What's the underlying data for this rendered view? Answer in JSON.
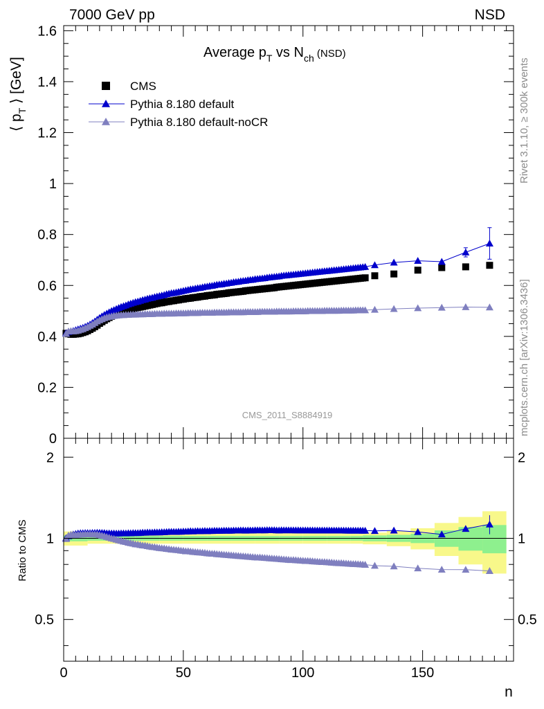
{
  "header": {
    "left": "7000 GeV pp",
    "right": "NSD"
  },
  "side_text": {
    "rivet": "Rivet 3.1.10, ≥ 300k events",
    "mcplots": "mcplots.cern.ch [arXiv:1306.3436]"
  },
  "colors": {
    "cms": "#000000",
    "default": "#0000cc",
    "nocr": "#7f7fbf",
    "band_inner": "#8ef08e",
    "band_outer": "#f8f88a",
    "watermark": "#999999",
    "side_text": "#8c8c8c"
  },
  "chart_data": [
    {
      "type": "scatter",
      "title_parts": {
        "main": "Average p",
        "sub1": "T",
        "mid": " vs N",
        "sub2": "ch",
        "suffix": " (NSD)"
      },
      "watermark": "CMS_2011_S8884919",
      "ylabel_parts": {
        "open": "⟨ p",
        "sub": "T",
        "close": " ⟩ [GeV]"
      },
      "xlim": [
        0,
        188
      ],
      "ylim": [
        0,
        1.62
      ],
      "yticks": [
        0,
        0.2,
        0.4,
        0.6,
        0.8,
        1,
        1.2,
        1.4,
        1.6
      ],
      "ytick_labels": [
        "0",
        "0.2",
        "0.4",
        "0.6",
        "0.8",
        "1",
        "1.2",
        "1.4",
        "1.6"
      ],
      "legend_position": "top-left",
      "series": [
        {
          "name": "CMS",
          "marker": "square",
          "x": [
            1,
            2,
            3,
            4,
            5,
            6,
            7,
            8,
            9,
            10,
            11,
            12,
            13,
            14,
            15,
            16,
            17,
            18,
            19,
            20,
            21,
            22,
            23,
            24,
            25,
            26,
            27,
            28,
            29,
            30,
            31,
            32,
            33,
            34,
            35,
            36,
            37,
            38,
            39,
            40,
            41,
            42,
            43,
            44,
            45,
            46,
            47,
            48,
            49,
            50,
            51,
            52,
            53,
            54,
            55,
            56,
            57,
            58,
            59,
            60,
            61,
            62,
            63,
            64,
            65,
            66,
            67,
            68,
            69,
            70,
            71,
            72,
            73,
            74,
            75,
            76,
            77,
            78,
            79,
            80,
            81,
            82,
            83,
            84,
            85,
            86,
            87,
            88,
            89,
            90,
            91,
            92,
            93,
            94,
            95,
            96,
            97,
            98,
            99,
            100,
            101,
            102,
            103,
            104,
            105,
            106,
            107,
            108,
            109,
            110,
            111,
            112,
            113,
            114,
            115,
            116,
            117,
            118,
            119,
            120,
            121,
            122,
            123,
            124,
            125,
            126,
            130,
            138,
            148,
            158,
            168,
            178
          ],
          "y": [
            0.412,
            0.41,
            0.408,
            0.408,
            0.409,
            0.41,
            0.412,
            0.415,
            0.418,
            0.422,
            0.427,
            0.432,
            0.438,
            0.444,
            0.451,
            0.457,
            0.463,
            0.469,
            0.474,
            0.479,
            0.483,
            0.487,
            0.491,
            0.494,
            0.497,
            0.5,
            0.503,
            0.506,
            0.508,
            0.511,
            0.513,
            0.515,
            0.517,
            0.519,
            0.521,
            0.523,
            0.525,
            0.527,
            0.529,
            0.531,
            0.532,
            0.534,
            0.536,
            0.537,
            0.539,
            0.54,
            0.542,
            0.543,
            0.545,
            0.546,
            0.548,
            0.549,
            0.55,
            0.552,
            0.553,
            0.554,
            0.556,
            0.557,
            0.558,
            0.56,
            0.561,
            0.562,
            0.563,
            0.565,
            0.566,
            0.567,
            0.568,
            0.569,
            0.571,
            0.572,
            0.573,
            0.574,
            0.575,
            0.576,
            0.577,
            0.579,
            0.58,
            0.581,
            0.582,
            0.583,
            0.584,
            0.585,
            0.586,
            0.587,
            0.588,
            0.589,
            0.59,
            0.591,
            0.593,
            0.594,
            0.595,
            0.596,
            0.597,
            0.598,
            0.599,
            0.6,
            0.601,
            0.602,
            0.603,
            0.604,
            0.605,
            0.606,
            0.607,
            0.608,
            0.609,
            0.61,
            0.611,
            0.612,
            0.613,
            0.614,
            0.615,
            0.616,
            0.617,
            0.618,
            0.619,
            0.62,
            0.621,
            0.622,
            0.623,
            0.624,
            0.625,
            0.626,
            0.627,
            0.628,
            0.629,
            0.63,
            0.638,
            0.645,
            0.66,
            0.67,
            0.673,
            0.679
          ]
        },
        {
          "name": "Pythia 8.180 default",
          "marker": "triangle",
          "x": [
            1,
            2,
            3,
            4,
            5,
            6,
            7,
            8,
            9,
            10,
            11,
            12,
            13,
            14,
            15,
            16,
            17,
            18,
            19,
            20,
            21,
            22,
            23,
            24,
            25,
            26,
            27,
            28,
            29,
            30,
            31,
            32,
            33,
            34,
            35,
            36,
            37,
            38,
            39,
            40,
            41,
            42,
            43,
            44,
            45,
            46,
            47,
            48,
            49,
            50,
            51,
            52,
            53,
            54,
            55,
            56,
            57,
            58,
            59,
            60,
            61,
            62,
            63,
            64,
            65,
            66,
            67,
            68,
            69,
            70,
            71,
            72,
            73,
            74,
            75,
            76,
            77,
            78,
            79,
            80,
            81,
            82,
            83,
            84,
            85,
            86,
            87,
            88,
            89,
            90,
            91,
            92,
            93,
            94,
            95,
            96,
            97,
            98,
            99,
            100,
            101,
            102,
            103,
            104,
            105,
            106,
            107,
            108,
            109,
            110,
            111,
            112,
            113,
            114,
            115,
            116,
            117,
            118,
            119,
            120,
            121,
            122,
            123,
            124,
            125,
            126,
            130,
            138,
            148,
            158,
            168,
            178
          ],
          "y": [
            0.413,
            0.418,
            0.42,
            0.422,
            0.425,
            0.428,
            0.431,
            0.434,
            0.438,
            0.442,
            0.447,
            0.453,
            0.459,
            0.466,
            0.473,
            0.479,
            0.485,
            0.49,
            0.495,
            0.5,
            0.504,
            0.508,
            0.512,
            0.516,
            0.519,
            0.522,
            0.526,
            0.529,
            0.532,
            0.535,
            0.537,
            0.54,
            0.543,
            0.545,
            0.548,
            0.55,
            0.552,
            0.555,
            0.557,
            0.559,
            0.561,
            0.563,
            0.566,
            0.568,
            0.57,
            0.571,
            0.573,
            0.575,
            0.577,
            0.579,
            0.581,
            0.583,
            0.585,
            0.586,
            0.588,
            0.59,
            0.591,
            0.593,
            0.595,
            0.596,
            0.598,
            0.599,
            0.601,
            0.603,
            0.604,
            0.605,
            0.607,
            0.608,
            0.61,
            0.611,
            0.613,
            0.614,
            0.615,
            0.617,
            0.618,
            0.619,
            0.621,
            0.622,
            0.623,
            0.625,
            0.626,
            0.627,
            0.628,
            0.629,
            0.631,
            0.632,
            0.633,
            0.634,
            0.635,
            0.636,
            0.638,
            0.639,
            0.64,
            0.641,
            0.642,
            0.643,
            0.644,
            0.645,
            0.646,
            0.647,
            0.648,
            0.649,
            0.65,
            0.651,
            0.652,
            0.653,
            0.654,
            0.655,
            0.656,
            0.657,
            0.658,
            0.659,
            0.66,
            0.661,
            0.662,
            0.663,
            0.664,
            0.665,
            0.666,
            0.667,
            0.668,
            0.669,
            0.67,
            0.671,
            0.672,
            0.673,
            0.68,
            0.69,
            0.697,
            0.693,
            0.73,
            0.765
          ],
          "yerr": {
            "178": 0.062,
            "168": 0.018
          }
        },
        {
          "name": "Pythia 8.180 default-noCR",
          "marker": "triangle",
          "x": [
            1,
            2,
            3,
            4,
            5,
            6,
            7,
            8,
            9,
            10,
            11,
            12,
            13,
            14,
            15,
            16,
            17,
            18,
            19,
            20,
            21,
            22,
            23,
            24,
            25,
            26,
            27,
            28,
            29,
            30,
            31,
            32,
            33,
            34,
            35,
            36,
            37,
            38,
            39,
            40,
            41,
            42,
            43,
            44,
            45,
            46,
            47,
            48,
            49,
            50,
            51,
            52,
            53,
            54,
            55,
            56,
            57,
            58,
            59,
            60,
            61,
            62,
            63,
            64,
            65,
            66,
            67,
            68,
            69,
            70,
            71,
            72,
            73,
            74,
            75,
            76,
            77,
            78,
            79,
            80,
            81,
            82,
            83,
            84,
            85,
            86,
            87,
            88,
            89,
            90,
            91,
            92,
            93,
            94,
            95,
            96,
            97,
            98,
            99,
            100,
            101,
            102,
            103,
            104,
            105,
            106,
            107,
            108,
            109,
            110,
            111,
            112,
            113,
            114,
            115,
            116,
            117,
            118,
            119,
            120,
            121,
            122,
            123,
            124,
            125,
            126,
            130,
            138,
            148,
            158,
            168,
            178
          ],
          "y": [
            0.41,
            0.42,
            0.421,
            0.42,
            0.421,
            0.423,
            0.426,
            0.429,
            0.433,
            0.437,
            0.442,
            0.447,
            0.453,
            0.459,
            0.464,
            0.468,
            0.472,
            0.475,
            0.477,
            0.479,
            0.481,
            0.482,
            0.483,
            0.484,
            0.484,
            0.485,
            0.485,
            0.486,
            0.486,
            0.486,
            0.487,
            0.487,
            0.487,
            0.488,
            0.488,
            0.488,
            0.488,
            0.489,
            0.489,
            0.489,
            0.489,
            0.49,
            0.49,
            0.49,
            0.49,
            0.49,
            0.491,
            0.491,
            0.491,
            0.491,
            0.491,
            0.492,
            0.492,
            0.492,
            0.492,
            0.492,
            0.493,
            0.493,
            0.493,
            0.493,
            0.493,
            0.493,
            0.494,
            0.494,
            0.494,
            0.494,
            0.494,
            0.494,
            0.495,
            0.495,
            0.495,
            0.495,
            0.495,
            0.495,
            0.495,
            0.496,
            0.496,
            0.496,
            0.496,
            0.496,
            0.496,
            0.497,
            0.497,
            0.497,
            0.497,
            0.497,
            0.497,
            0.497,
            0.498,
            0.498,
            0.498,
            0.498,
            0.498,
            0.498,
            0.498,
            0.499,
            0.499,
            0.499,
            0.499,
            0.499,
            0.499,
            0.5,
            0.5,
            0.5,
            0.5,
            0.5,
            0.5,
            0.5,
            0.501,
            0.501,
            0.501,
            0.501,
            0.501,
            0.501,
            0.501,
            0.502,
            0.502,
            0.502,
            0.502,
            0.502,
            0.502,
            0.503,
            0.503,
            0.503,
            0.503,
            0.503,
            0.505,
            0.508,
            0.511,
            0.513,
            0.515,
            0.514
          ]
        }
      ]
    },
    {
      "type": "scatter",
      "ylabel": "Ratio to CMS",
      "xlabel": "n",
      "xlim": [
        0,
        188
      ],
      "ylim": [
        0.35,
        2.35
      ],
      "log_y": true,
      "xticks": [
        0,
        50,
        100,
        150
      ],
      "xtick_labels": [
        "0",
        "50",
        "100",
        "150"
      ],
      "yticks": [
        0.5,
        1,
        2
      ],
      "ytick_labels": [
        "0.5",
        "1",
        "2"
      ],
      "band_edges": [
        0,
        10,
        20,
        30,
        40,
        50,
        60,
        70,
        80,
        90,
        100,
        110,
        120,
        125,
        135,
        145,
        155,
        165,
        175,
        185
      ],
      "band_inner": [
        0.025,
        0.02,
        0.02,
        0.02,
        0.02,
        0.02,
        0.02,
        0.02,
        0.02,
        0.02,
        0.02,
        0.02,
        0.02,
        0.025,
        0.03,
        0.04,
        0.07,
        0.1,
        0.12
      ],
      "band_outer": [
        0.06,
        0.045,
        0.045,
        0.045,
        0.045,
        0.045,
        0.045,
        0.045,
        0.045,
        0.045,
        0.045,
        0.045,
        0.045,
        0.05,
        0.065,
        0.09,
        0.14,
        0.2,
        0.26
      ]
    }
  ]
}
